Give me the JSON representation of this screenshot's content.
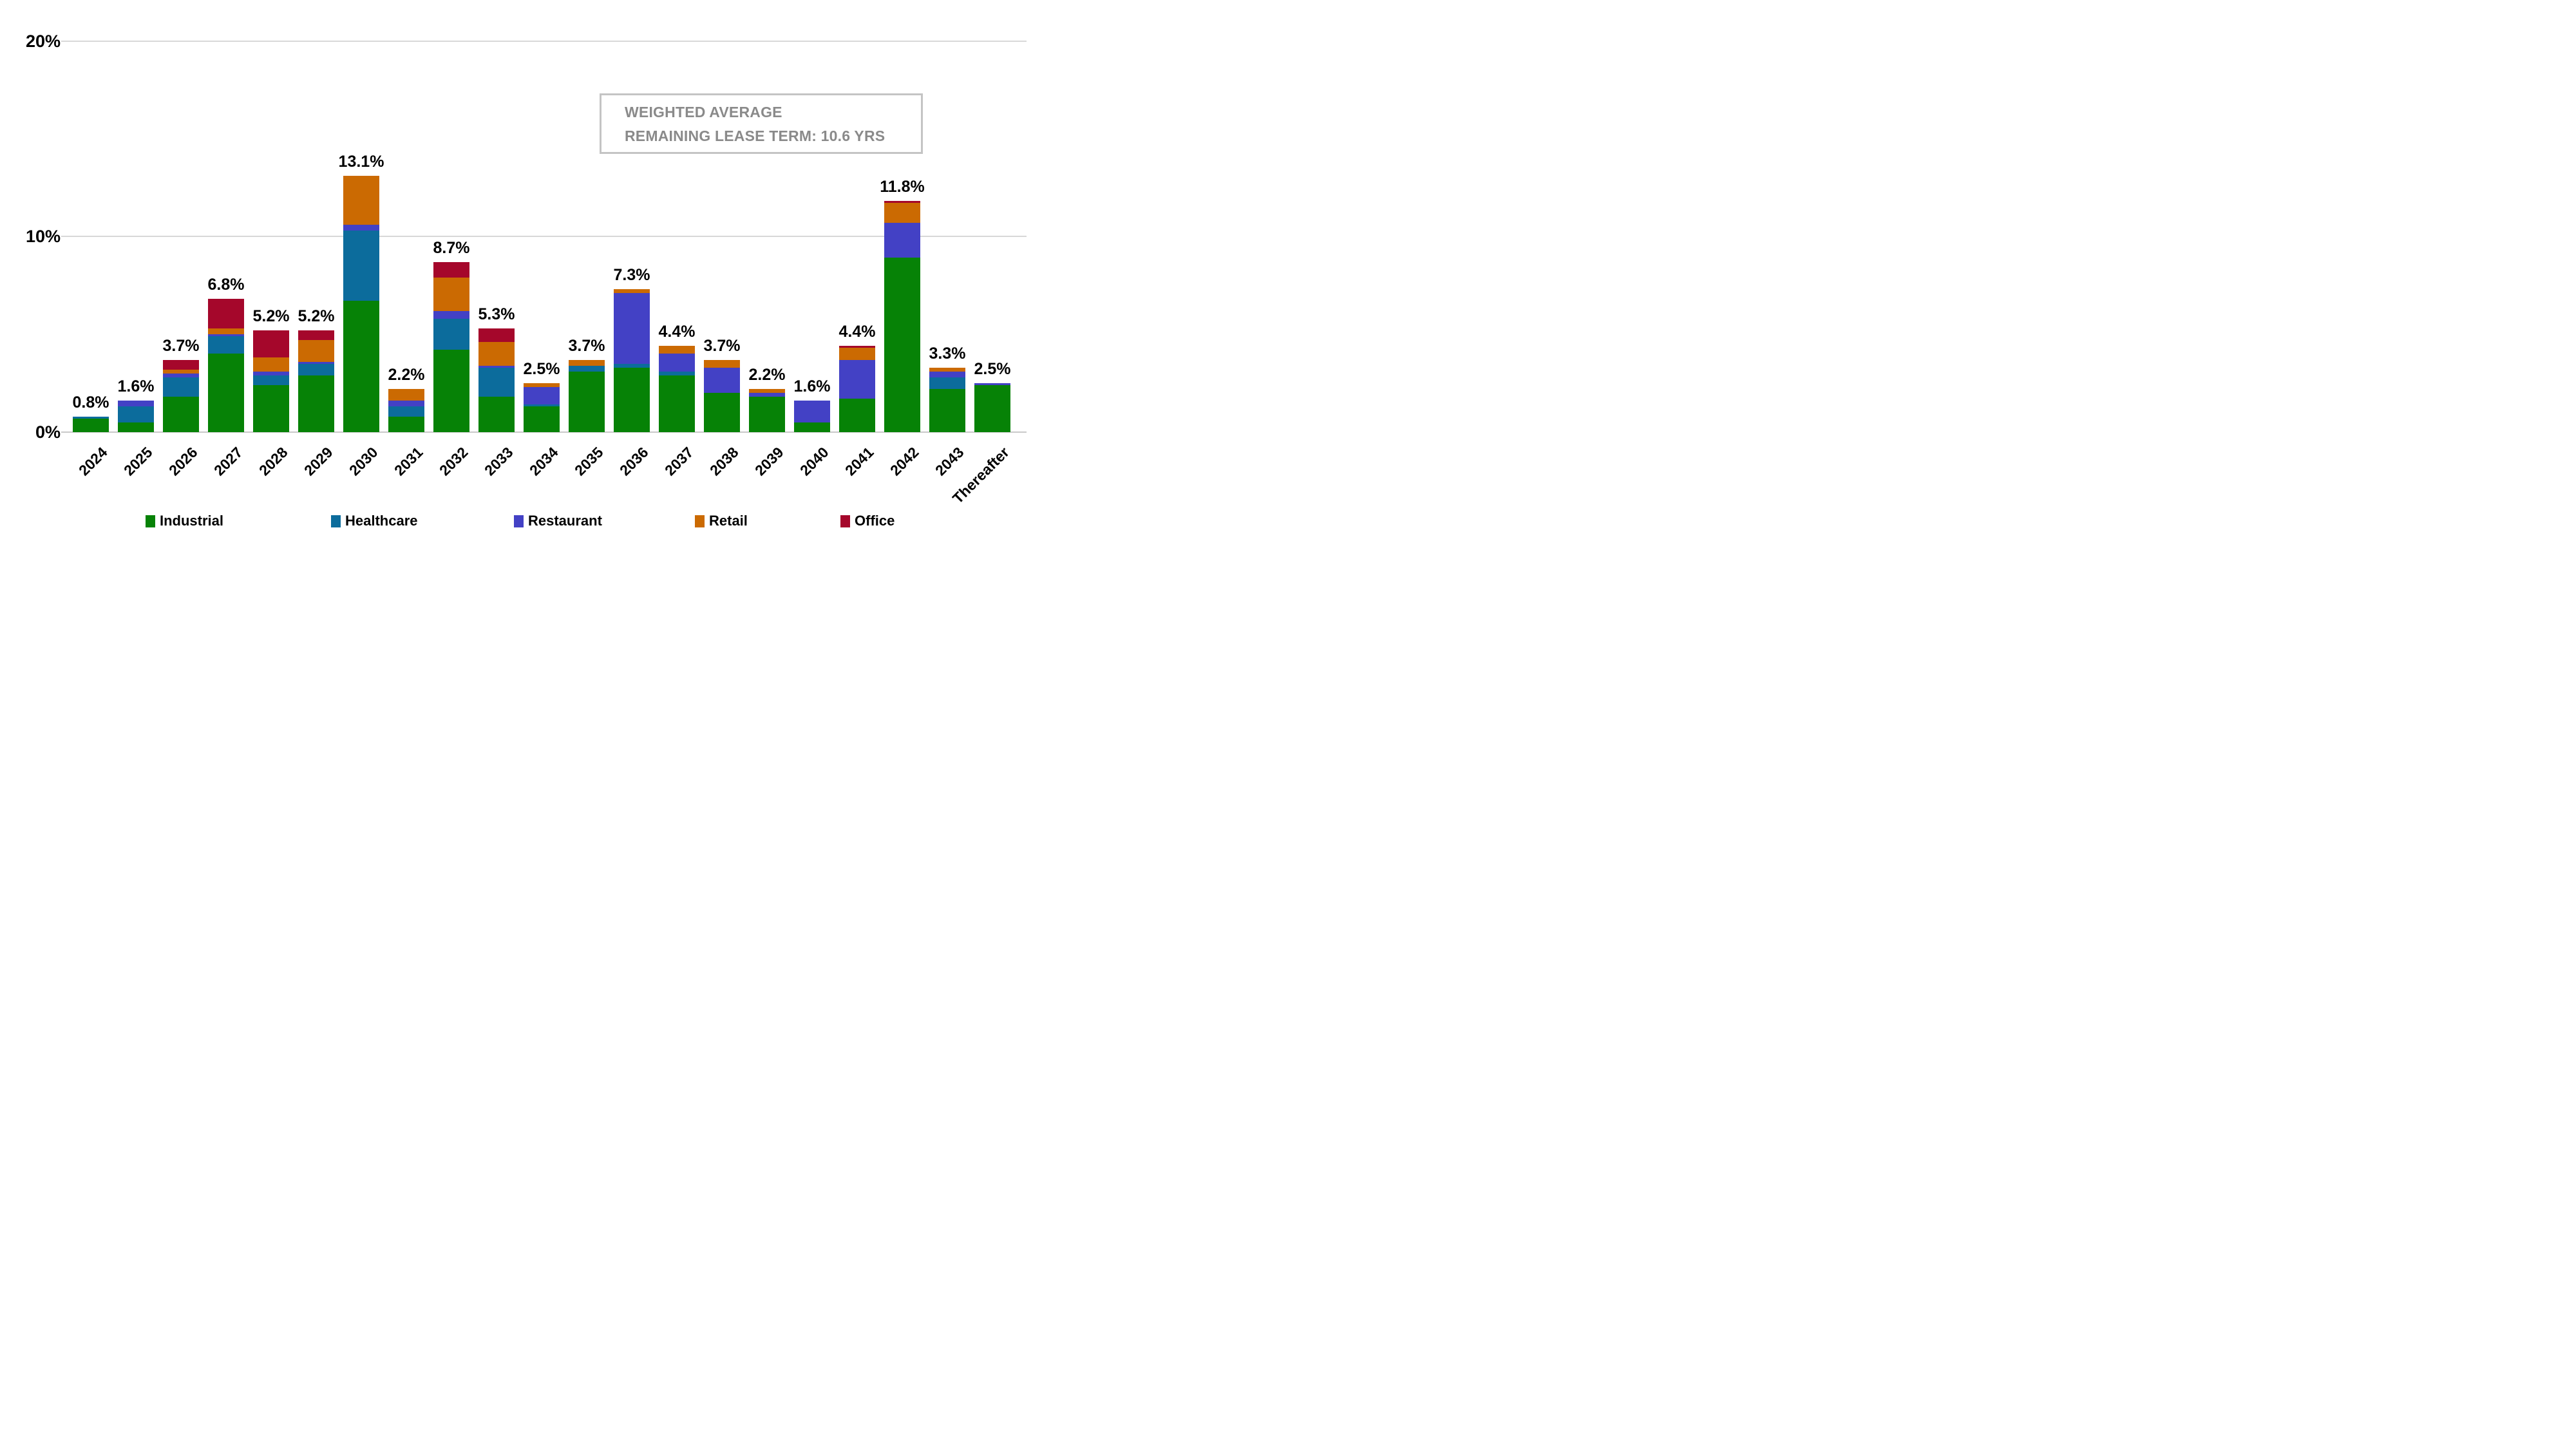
{
  "y_axis": {
    "ticks": [
      "20%",
      "10%",
      "0%"
    ]
  },
  "annotation": {
    "line1": "WEIGHTED AVERAGE",
    "line2": "REMAINING LEASE TERM: 10.6 YRS"
  },
  "legend": [
    {
      "label": "Industrial",
      "color": "#068206"
    },
    {
      "label": "Healthcare",
      "color": "#0c6c9c"
    },
    {
      "label": "Restaurant",
      "color": "#4341c5"
    },
    {
      "label": "Retail",
      "color": "#cb6a02"
    },
    {
      "label": "Office",
      "color": "#a5072b"
    }
  ],
  "chart_data": {
    "type": "bar",
    "stacked": true,
    "title": "",
    "xlabel": "",
    "ylabel": "",
    "ylim": [
      0,
      20
    ],
    "gridline_ticks": [
      "0%",
      "10%",
      "20%"
    ],
    "legend_position": "bottom",
    "categories": [
      "2024",
      "2025",
      "2026",
      "2027",
      "2028",
      "2029",
      "2030",
      "2031",
      "2032",
      "2033",
      "2034",
      "2035",
      "2036",
      "2037",
      "2038",
      "2039",
      "2040",
      "2041",
      "2042",
      "2043",
      "Thereafter"
    ],
    "totals": [
      "0.8%",
      "1.6%",
      "3.7%",
      "6.8%",
      "5.2%",
      "5.2%",
      "13.1%",
      "2.2%",
      "8.7%",
      "5.3%",
      "2.5%",
      "3.7%",
      "7.3%",
      "4.4%",
      "3.7%",
      "2.2%",
      "1.6%",
      "4.4%",
      "11.8%",
      "3.3%",
      "2.5%"
    ],
    "series": [
      {
        "name": "Industrial",
        "color": "#068206",
        "values": [
          0.7,
          0.5,
          1.8,
          4.0,
          2.4,
          2.9,
          6.7,
          0.8,
          4.2,
          1.8,
          1.3,
          3.1,
          3.3,
          2.9,
          2.0,
          1.8,
          0.5,
          1.7,
          8.9,
          2.2,
          2.4
        ]
      },
      {
        "name": "Healthcare",
        "color": "#0c6c9c",
        "values": [
          0.1,
          0.8,
          1.0,
          0.9,
          0.5,
          0.6,
          3.6,
          0.5,
          1.6,
          1.5,
          0.1,
          0.3,
          0.2,
          0.2,
          0,
          0,
          0,
          0,
          0,
          0.6,
          0
        ]
      },
      {
        "name": "Restaurant",
        "color": "#4341c5",
        "values": [
          0,
          0.3,
          0.2,
          0.1,
          0.2,
          0.1,
          0.3,
          0.3,
          0.4,
          0.1,
          0.9,
          0,
          3.6,
          0.9,
          1.3,
          0.2,
          1.1,
          2.0,
          1.8,
          0.3,
          0.1
        ]
      },
      {
        "name": "Retail",
        "color": "#cb6a02",
        "values": [
          0,
          0,
          0.2,
          0.3,
          0.7,
          1.1,
          2.5,
          0.6,
          1.7,
          1.2,
          0.2,
          0.3,
          0.2,
          0.4,
          0.4,
          0.2,
          0,
          0.6,
          1.0,
          0.2,
          0
        ]
      },
      {
        "name": "Office",
        "color": "#a5072b",
        "values": [
          0,
          0,
          0.5,
          1.5,
          1.4,
          0.5,
          0,
          0,
          0.8,
          0.7,
          0,
          0,
          0,
          0,
          0,
          0,
          0,
          0.1,
          0.1,
          0,
          0
        ]
      }
    ]
  }
}
